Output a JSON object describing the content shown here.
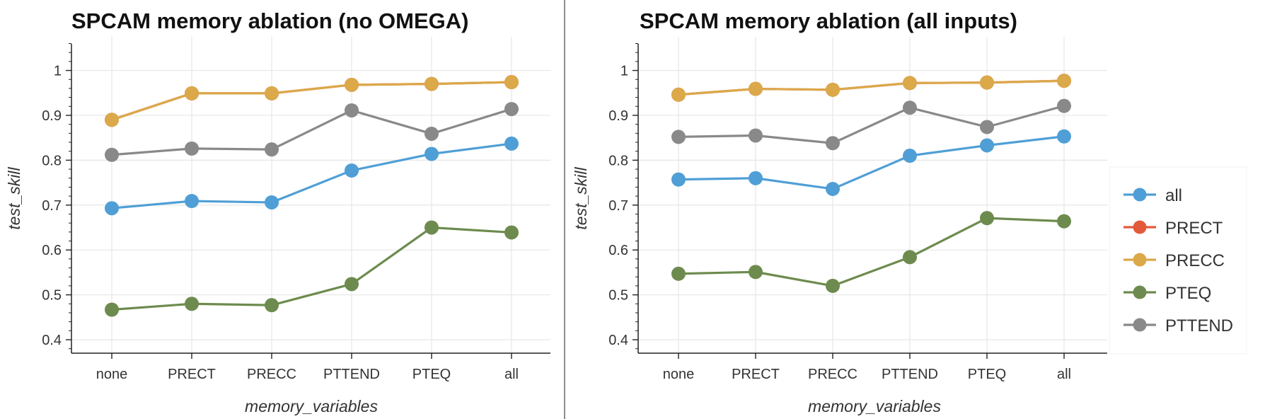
{
  "chart_data": [
    {
      "type": "line",
      "title": "SPCAM memory ablation (no OMEGA)",
      "xlabel": "memory_variables",
      "ylabel": "test_skill",
      "categories": [
        "none",
        "PRECT",
        "PRECC",
        "PTTEND",
        "PTEQ",
        "all"
      ],
      "ylim": [
        0.37,
        1.075
      ],
      "yticks": [
        "0.4",
        "0.5",
        "0.6",
        "0.7",
        "0.8",
        "0.9",
        "1"
      ],
      "grid": true,
      "series": [
        {
          "name": "all",
          "color": "#4f9fd6",
          "values": [
            0.693,
            0.709,
            0.706,
            0.777,
            0.814,
            0.837
          ]
        },
        {
          "name": "PRECT",
          "color": "#e35a3b",
          "values": [
            0.89,
            0.949,
            0.949,
            0.968,
            0.97,
            0.974
          ]
        },
        {
          "name": "PRECC",
          "color": "#dba84a",
          "values": [
            0.89,
            0.949,
            0.949,
            0.968,
            0.97,
            0.974
          ]
        },
        {
          "name": "PTEQ",
          "color": "#6d8b4e",
          "values": [
            0.467,
            0.48,
            0.477,
            0.524,
            0.65,
            0.639
          ]
        },
        {
          "name": "PTTEND",
          "color": "#898989",
          "values": [
            0.812,
            0.826,
            0.824,
            0.911,
            0.859,
            0.914
          ]
        }
      ]
    },
    {
      "type": "line",
      "title": "SPCAM memory ablation (all inputs)",
      "xlabel": "memory_variables",
      "ylabel": "test_skill",
      "categories": [
        "none",
        "PRECT",
        "PRECC",
        "PTTEND",
        "PTEQ",
        "all"
      ],
      "ylim": [
        0.37,
        1.075
      ],
      "yticks": [
        "0.4",
        "0.5",
        "0.6",
        "0.7",
        "0.8",
        "0.9",
        "1"
      ],
      "grid": true,
      "legend": "right",
      "series": [
        {
          "name": "all",
          "color": "#4f9fd6",
          "values": [
            0.757,
            0.76,
            0.736,
            0.81,
            0.833,
            0.853
          ]
        },
        {
          "name": "PRECT",
          "color": "#e35a3b",
          "values": [
            0.946,
            0.959,
            0.957,
            0.972,
            0.973,
            0.977
          ]
        },
        {
          "name": "PRECC",
          "color": "#dba84a",
          "values": [
            0.946,
            0.959,
            0.957,
            0.972,
            0.973,
            0.977
          ]
        },
        {
          "name": "PTEQ",
          "color": "#6d8b4e",
          "values": [
            0.547,
            0.551,
            0.52,
            0.584,
            0.671,
            0.664
          ]
        },
        {
          "name": "PTTEND",
          "color": "#898989",
          "values": [
            0.852,
            0.855,
            0.838,
            0.917,
            0.874,
            0.921
          ]
        }
      ]
    }
  ],
  "legend": {
    "items": [
      {
        "label": "all",
        "color": "#4f9fd6"
      },
      {
        "label": "PRECT",
        "color": "#e35a3b"
      },
      {
        "label": "PRECC",
        "color": "#dba84a"
      },
      {
        "label": "PTEQ",
        "color": "#6d8b4e"
      },
      {
        "label": "PTTEND",
        "color": "#898989"
      }
    ]
  }
}
